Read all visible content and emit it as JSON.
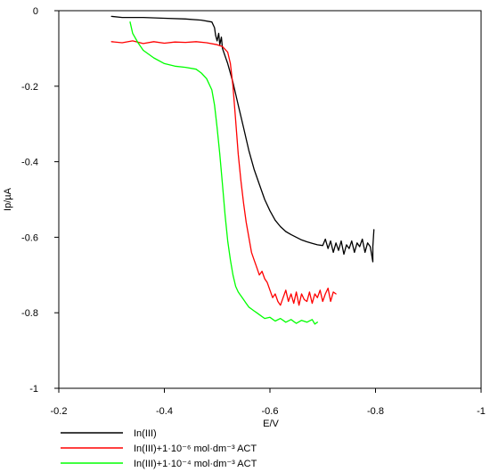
{
  "chart_data": {
    "type": "line",
    "xlabel": "E/V",
    "ylabel": "Ip/µA",
    "xlim": [
      -0.2,
      -1.0
    ],
    "ylim": [
      -1.0,
      0
    ],
    "x_ticks": [
      -0.2,
      -0.4,
      -0.6,
      -0.8,
      -1.0
    ],
    "x_tick_labels": [
      "-0.2",
      "-0.4",
      "-0.6",
      "-0.8",
      "-1"
    ],
    "y_ticks": [
      0,
      -0.2,
      -0.4,
      -0.6,
      -0.8,
      -1.0
    ],
    "y_tick_labels": [
      "0",
      "-0.2",
      "-0.4",
      "-0.6",
      "-0.8",
      "-1"
    ],
    "grid": false,
    "legend_position": "bottom",
    "series": [
      {
        "name": "In(III)",
        "color": "#000000",
        "x": [
          -0.3,
          -0.32,
          -0.36,
          -0.4,
          -0.44,
          -0.47,
          -0.49,
          -0.495,
          -0.497,
          -0.5,
          -0.503,
          -0.505,
          -0.508,
          -0.51,
          -0.52,
          -0.53,
          -0.54,
          -0.55,
          -0.56,
          -0.57,
          -0.58,
          -0.59,
          -0.6,
          -0.61,
          -0.62,
          -0.63,
          -0.64,
          -0.65,
          -0.66,
          -0.67,
          -0.68,
          -0.69,
          -0.7,
          -0.705,
          -0.71,
          -0.715,
          -0.72,
          -0.725,
          -0.73,
          -0.735,
          -0.74,
          -0.745,
          -0.75,
          -0.755,
          -0.76,
          -0.765,
          -0.77,
          -0.775,
          -0.78,
          -0.785,
          -0.79,
          -0.795,
          -0.795,
          -0.797
        ],
        "y": [
          -0.015,
          -0.018,
          -0.018,
          -0.02,
          -0.022,
          -0.025,
          -0.03,
          -0.045,
          -0.065,
          -0.08,
          -0.06,
          -0.09,
          -0.07,
          -0.1,
          -0.14,
          -0.19,
          -0.25,
          -0.31,
          -0.37,
          -0.42,
          -0.46,
          -0.5,
          -0.53,
          -0.555,
          -0.572,
          -0.585,
          -0.593,
          -0.6,
          -0.607,
          -0.612,
          -0.616,
          -0.62,
          -0.622,
          -0.605,
          -0.63,
          -0.61,
          -0.64,
          -0.615,
          -0.635,
          -0.61,
          -0.645,
          -0.62,
          -0.63,
          -0.61,
          -0.64,
          -0.615,
          -0.625,
          -0.605,
          -0.64,
          -0.615,
          -0.625,
          -0.665,
          -0.625,
          -0.58
        ]
      },
      {
        "name": "In(III)+1·10⁻⁶ mol·dm⁻³ ACT",
        "color": "#ff0000",
        "x": [
          -0.3,
          -0.32,
          -0.34,
          -0.36,
          -0.38,
          -0.4,
          -0.42,
          -0.44,
          -0.46,
          -0.48,
          -0.5,
          -0.51,
          -0.52,
          -0.525,
          -0.53,
          -0.535,
          -0.54,
          -0.545,
          -0.55,
          -0.555,
          -0.56,
          -0.565,
          -0.57,
          -0.575,
          -0.58,
          -0.585,
          -0.59,
          -0.595,
          -0.6,
          -0.605,
          -0.61,
          -0.615,
          -0.62,
          -0.625,
          -0.63,
          -0.635,
          -0.64,
          -0.645,
          -0.65,
          -0.655,
          -0.66,
          -0.665,
          -0.67,
          -0.675,
          -0.68,
          -0.685,
          -0.69,
          -0.695,
          -0.7,
          -0.705,
          -0.71,
          -0.715,
          -0.72,
          -0.725
        ],
        "y": [
          -0.082,
          -0.085,
          -0.08,
          -0.087,
          -0.082,
          -0.086,
          -0.083,
          -0.084,
          -0.082,
          -0.085,
          -0.09,
          -0.095,
          -0.11,
          -0.14,
          -0.2,
          -0.29,
          -0.38,
          -0.45,
          -0.51,
          -0.56,
          -0.6,
          -0.64,
          -0.66,
          -0.68,
          -0.7,
          -0.69,
          -0.71,
          -0.72,
          -0.74,
          -0.76,
          -0.75,
          -0.77,
          -0.78,
          -0.76,
          -0.74,
          -0.77,
          -0.75,
          -0.775,
          -0.745,
          -0.78,
          -0.75,
          -0.765,
          -0.77,
          -0.745,
          -0.775,
          -0.75,
          -0.76,
          -0.74,
          -0.77,
          -0.75,
          -0.735,
          -0.77,
          -0.745,
          -0.75
        ]
      },
      {
        "name": "In(III)+1·10⁻⁴ mol·dm⁻³ ACT",
        "color": "#00ff00",
        "x": [
          -0.335,
          -0.34,
          -0.35,
          -0.36,
          -0.38,
          -0.4,
          -0.42,
          -0.44,
          -0.46,
          -0.47,
          -0.48,
          -0.49,
          -0.495,
          -0.5,
          -0.505,
          -0.51,
          -0.515,
          -0.52,
          -0.525,
          -0.53,
          -0.535,
          -0.54,
          -0.545,
          -0.55,
          -0.555,
          -0.56,
          -0.565,
          -0.57,
          -0.575,
          -0.58,
          -0.59,
          -0.6,
          -0.61,
          -0.62,
          -0.63,
          -0.64,
          -0.65,
          -0.66,
          -0.67,
          -0.68,
          -0.685,
          -0.69
        ],
        "y": [
          -0.03,
          -0.06,
          -0.085,
          -0.105,
          -0.125,
          -0.14,
          -0.147,
          -0.15,
          -0.155,
          -0.165,
          -0.18,
          -0.21,
          -0.25,
          -0.31,
          -0.38,
          -0.46,
          -0.54,
          -0.61,
          -0.66,
          -0.7,
          -0.73,
          -0.745,
          -0.755,
          -0.765,
          -0.775,
          -0.785,
          -0.79,
          -0.795,
          -0.8,
          -0.805,
          -0.815,
          -0.812,
          -0.822,
          -0.815,
          -0.825,
          -0.818,
          -0.828,
          -0.82,
          -0.825,
          -0.818,
          -0.83,
          -0.825
        ]
      }
    ]
  }
}
